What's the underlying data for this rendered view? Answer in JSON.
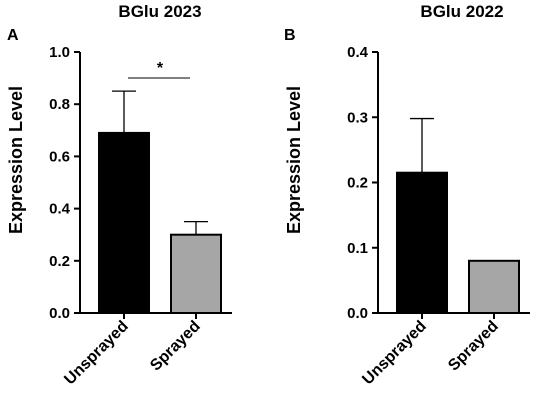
{
  "chart_data": [
    {
      "type": "bar",
      "panel": "A",
      "title": "BGlu 2023",
      "ylabel": "Expression Level",
      "xlabel": "",
      "categories": [
        "Unsprayed",
        "Sprayed"
      ],
      "values": [
        0.69,
        0.3
      ],
      "errors": [
        0.16,
        0.05
      ],
      "bar_colors": [
        "#000000",
        "#a6a6a6"
      ],
      "ylim": [
        0,
        1.0
      ],
      "yticks": [
        "0.0",
        "0.2",
        "0.4",
        "0.6",
        "0.8",
        "1.0"
      ],
      "significance": "*",
      "grid": false
    },
    {
      "type": "bar",
      "panel": "B",
      "title": "BGlu 2022",
      "ylabel": "Expression Level",
      "xlabel": "",
      "categories": [
        "Unsprayed",
        "Sprayed"
      ],
      "values": [
        0.215,
        0.08
      ],
      "errors": [
        0.083,
        0.0
      ],
      "bar_colors": [
        "#000000",
        "#a6a6a6"
      ],
      "ylim": [
        0,
        0.4
      ],
      "yticks": [
        "0.0",
        "0.1",
        "0.2",
        "0.3",
        "0.4"
      ],
      "significance": "",
      "grid": false
    }
  ]
}
